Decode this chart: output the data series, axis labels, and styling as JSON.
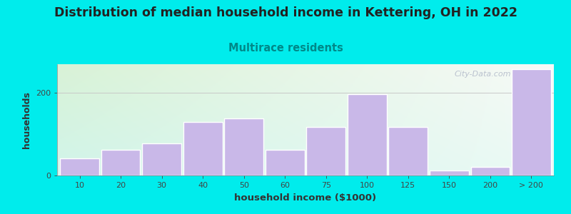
{
  "title": "Distribution of median household income in Kettering, OH in 2022",
  "subtitle": "Multirace residents",
  "xlabel": "household income ($1000)",
  "ylabel": "households",
  "bar_labels": [
    "10",
    "20",
    "30",
    "40",
    "50",
    "60",
    "75",
    "100",
    "125",
    "150",
    "200",
    "> 200"
  ],
  "bar_values": [
    42,
    62,
    78,
    130,
    138,
    62,
    118,
    198,
    118,
    12,
    20,
    258
  ],
  "bar_color": "#c9b8e8",
  "bar_edge_color": "#ffffff",
  "background_outer": "#00ecec",
  "title_color": "#222222",
  "subtitle_color": "#008888",
  "axis_label_color": "#333333",
  "tick_color": "#444444",
  "watermark": "City-Data.com",
  "watermark_color": "#b0b8c8",
  "ylim": [
    0,
    270
  ],
  "yticks": [
    0,
    200
  ],
  "title_fontsize": 12.5,
  "subtitle_fontsize": 10.5,
  "xlabel_fontsize": 9.5,
  "ylabel_fontsize": 9
}
